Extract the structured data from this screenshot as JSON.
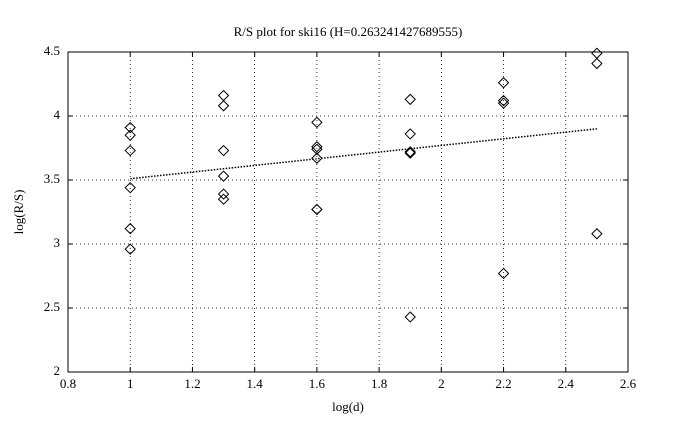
{
  "chart_data": {
    "type": "scatter",
    "title": "R/S plot for ski16 (H=0.263241427689555)",
    "x_label": "log(d)",
    "y_label": "log(R/S)",
    "xlim": [
      0.8,
      2.6
    ],
    "xticks": [
      0.8,
      1,
      1.2,
      1.4,
      1.6,
      1.8,
      2,
      2.2,
      2.4,
      2.6
    ],
    "ylim": [
      2,
      4.5
    ],
    "yticks": [
      2,
      2.5,
      3,
      3.5,
      4,
      4.5
    ],
    "grid": true,
    "series": [
      {
        "type": "scatter",
        "color": "#000000",
        "x": [
          1,
          1,
          1,
          1,
          1,
          1,
          1.3,
          1.3,
          1.3,
          1.3,
          1.3,
          1.3,
          1.6,
          1.6,
          1.6,
          1.6,
          1.6,
          1.6,
          1.9,
          1.9,
          1.9,
          1.9,
          1.9,
          2.2,
          2.2,
          2.2,
          2.2,
          2.5,
          2.5,
          2.5
        ],
        "values": [
          3.91,
          3.85,
          3.73,
          3.44,
          3.12,
          2.96,
          4.16,
          4.08,
          3.73,
          3.53,
          3.39,
          3.35,
          3.95,
          3.76,
          3.74,
          3.67,
          3.27,
          3.27,
          4.13,
          3.86,
          3.72,
          3.71,
          2.43,
          4.26,
          4.12,
          4.1,
          2.77,
          4.49,
          4.41,
          3.08
        ]
      },
      {
        "type": "line",
        "color": "#000000",
        "x": [
          1,
          2.5
        ],
        "values": [
          3.51,
          3.9
        ]
      }
    ]
  }
}
